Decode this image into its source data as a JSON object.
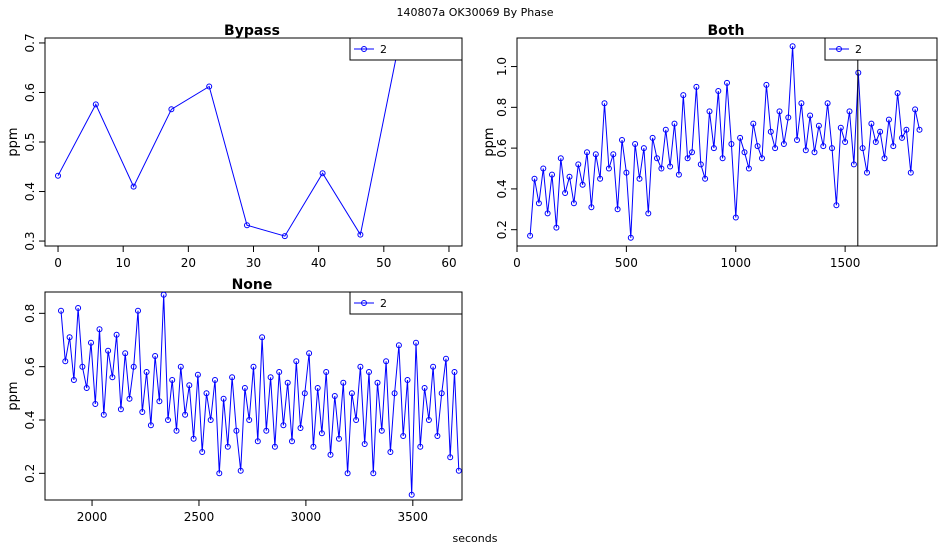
{
  "figure": {
    "main_title": "140807a    OK30069   By Phase",
    "xlabel": "seconds"
  },
  "chart_data": [
    {
      "id": "bypass",
      "type": "line",
      "title": "Bypass",
      "xlabel": "",
      "ylabel": "ppm",
      "xlim": [
        -2,
        62
      ],
      "ylim": [
        0.29,
        0.71
      ],
      "xticks": [
        0,
        10,
        20,
        30,
        40,
        50,
        60
      ],
      "yticks": [
        0.3,
        0.4,
        0.5,
        0.6,
        0.7
      ],
      "color": "#0000ff",
      "legend": {
        "position": "top-right",
        "entries": [
          "2"
        ]
      },
      "series": [
        {
          "name": "2",
          "x": [
            0,
            5.8,
            11.6,
            17.4,
            23.2,
            29,
            34.8,
            40.6,
            46.4,
            52.2
          ],
          "y": [
            0.432,
            0.576,
            0.41,
            0.566,
            0.612,
            0.332,
            0.31,
            0.437,
            0.313,
            0.69
          ]
        }
      ]
    },
    {
      "id": "both",
      "type": "line",
      "title": "Both",
      "xlabel": "",
      "ylabel": "ppm",
      "xlim": [
        0,
        1920
      ],
      "ylim": [
        0.12,
        1.14
      ],
      "xticks": [
        0,
        500,
        1000,
        1500
      ],
      "yticks": [
        0.2,
        0.4,
        0.6,
        0.8,
        1.0
      ],
      "ytick_labels": [
        "0.2",
        "0.4",
        "0.6",
        "0.8",
        "1.0"
      ],
      "vline_x": 1558,
      "color": "#0000ff",
      "legend": {
        "position": "top-right",
        "entries": [
          "2"
        ]
      },
      "series": [
        {
          "name": "2",
          "x": [
            60,
            80,
            100,
            120,
            140,
            160,
            180,
            200,
            220,
            240,
            260,
            280,
            300,
            320,
            340,
            360,
            380,
            400,
            420,
            440,
            460,
            480,
            500,
            520,
            540,
            560,
            580,
            600,
            620,
            640,
            660,
            680,
            700,
            720,
            740,
            760,
            780,
            800,
            820,
            840,
            860,
            880,
            900,
            920,
            940,
            960,
            980,
            1000,
            1020,
            1040,
            1060,
            1080,
            1100,
            1120,
            1140,
            1160,
            1180,
            1200,
            1220,
            1240,
            1260,
            1280,
            1300,
            1320,
            1340,
            1360,
            1380,
            1400,
            1420,
            1440,
            1460,
            1480,
            1500,
            1520,
            1540,
            1560,
            1580,
            1600,
            1620,
            1640,
            1660,
            1680,
            1700,
            1720,
            1740,
            1760,
            1780,
            1800,
            1820,
            1840
          ],
          "y": [
            0.17,
            0.45,
            0.33,
            0.5,
            0.28,
            0.47,
            0.21,
            0.55,
            0.38,
            0.46,
            0.33,
            0.52,
            0.42,
            0.58,
            0.31,
            0.57,
            0.45,
            0.82,
            0.5,
            0.57,
            0.3,
            0.64,
            0.48,
            0.16,
            0.62,
            0.45,
            0.6,
            0.28,
            0.65,
            0.55,
            0.5,
            0.69,
            0.51,
            0.72,
            0.47,
            0.86,
            0.55,
            0.58,
            0.9,
            0.52,
            0.45,
            0.78,
            0.6,
            0.88,
            0.55,
            0.92,
            0.62,
            0.26,
            0.65,
            0.58,
            0.5,
            0.72,
            0.61,
            0.55,
            0.91,
            0.68,
            0.6,
            0.78,
            0.62,
            0.75,
            1.1,
            0.64,
            0.82,
            0.59,
            0.76,
            0.58,
            0.71,
            0.61,
            0.82,
            0.6,
            0.32,
            0.7,
            0.63,
            0.78,
            0.52,
            0.97,
            0.6,
            0.48,
            0.72,
            0.63,
            0.68,
            0.55,
            0.74,
            0.61,
            0.87,
            0.65,
            0.69,
            0.48,
            0.79,
            0.69
          ]
        }
      ]
    },
    {
      "id": "none",
      "type": "line",
      "title": "None",
      "xlabel": "seconds",
      "ylabel": "ppm",
      "xlim": [
        1780,
        3730
      ],
      "ylim": [
        0.1,
        0.88
      ],
      "xticks": [
        2000,
        2500,
        3000,
        3500
      ],
      "yticks": [
        0.2,
        0.4,
        0.6,
        0.8
      ],
      "color": "#0000ff",
      "legend": {
        "position": "top-right",
        "entries": [
          "2"
        ]
      },
      "series": [
        {
          "name": "2",
          "x": [
            1855,
            1875,
            1895,
            1915,
            1935,
            1955,
            1975,
            1995,
            2015,
            2035,
            2055,
            2075,
            2095,
            2115,
            2135,
            2155,
            2175,
            2195,
            2215,
            2235,
            2255,
            2275,
            2295,
            2315,
            2335,
            2355,
            2375,
            2395,
            2415,
            2435,
            2455,
            2475,
            2495,
            2515,
            2535,
            2555,
            2575,
            2595,
            2615,
            2635,
            2655,
            2675,
            2695,
            2715,
            2735,
            2755,
            2775,
            2795,
            2815,
            2835,
            2855,
            2875,
            2895,
            2915,
            2935,
            2955,
            2975,
            2995,
            3015,
            3035,
            3055,
            3075,
            3095,
            3115,
            3135,
            3155,
            3175,
            3195,
            3215,
            3235,
            3255,
            3275,
            3295,
            3315,
            3335,
            3355,
            3375,
            3395,
            3415,
            3435,
            3455,
            3475,
            3495,
            3515,
            3535,
            3555,
            3575,
            3595,
            3615,
            3635,
            3655,
            3675,
            3695,
            3715
          ],
          "y": [
            0.81,
            0.62,
            0.71,
            0.55,
            0.82,
            0.6,
            0.52,
            0.69,
            0.46,
            0.74,
            0.42,
            0.66,
            0.56,
            0.72,
            0.44,
            0.65,
            0.48,
            0.6,
            0.81,
            0.43,
            0.58,
            0.38,
            0.64,
            0.47,
            0.87,
            0.4,
            0.55,
            0.36,
            0.6,
            0.42,
            0.53,
            0.33,
            0.57,
            0.28,
            0.5,
            0.4,
            0.55,
            0.2,
            0.48,
            0.3,
            0.56,
            0.36,
            0.21,
            0.52,
            0.4,
            0.6,
            0.32,
            0.71,
            0.36,
            0.56,
            0.3,
            0.58,
            0.38,
            0.54,
            0.32,
            0.62,
            0.37,
            0.5,
            0.65,
            0.3,
            0.52,
            0.35,
            0.58,
            0.27,
            0.49,
            0.33,
            0.54,
            0.2,
            0.5,
            0.4,
            0.6,
            0.31,
            0.58,
            0.2,
            0.54,
            0.36,
            0.62,
            0.28,
            0.5,
            0.68,
            0.34,
            0.55,
            0.12,
            0.69,
            0.3,
            0.52,
            0.4,
            0.6,
            0.34,
            0.5,
            0.63,
            0.26,
            0.58,
            0.21
          ]
        }
      ]
    }
  ]
}
